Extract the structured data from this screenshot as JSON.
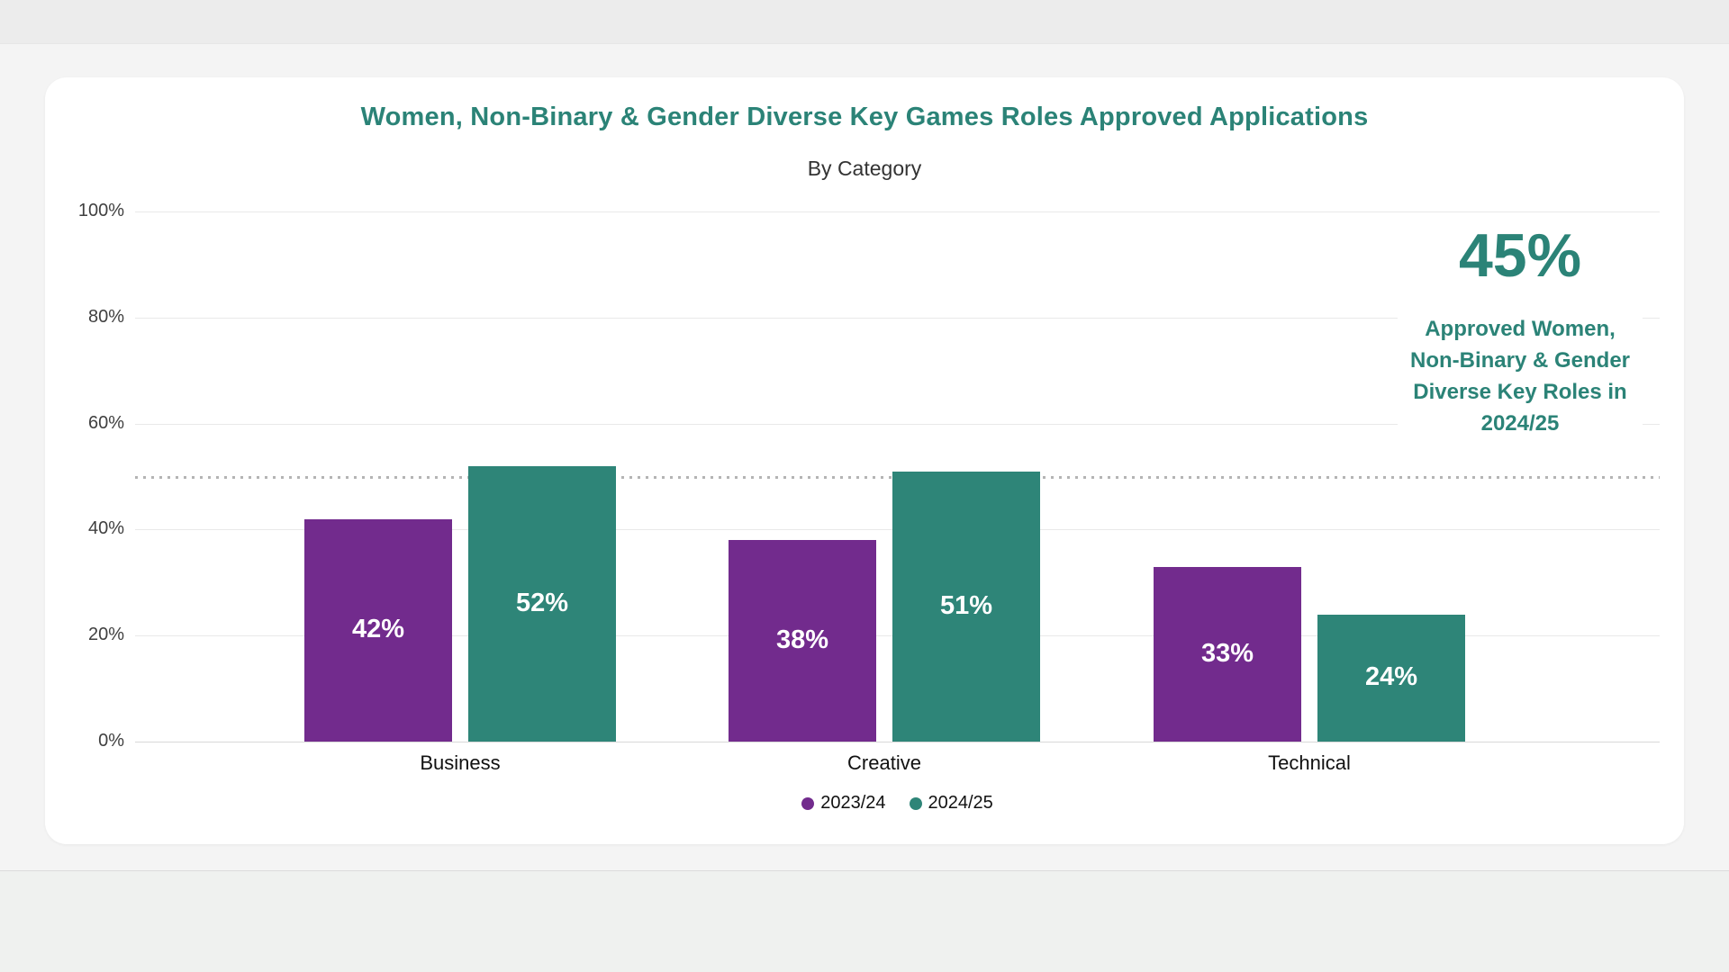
{
  "chart": {
    "title": "Women, Non-Binary & Gender Diverse Key Games Roles Approved Applications",
    "subtitle": "By Category",
    "title_color": "#2B8377"
  },
  "chart_data": {
    "type": "bar",
    "categories": [
      "Business",
      "Creative",
      "Technical"
    ],
    "series": [
      {
        "name": "2023/24",
        "color": "#722B8D",
        "values": [
          42,
          38,
          33
        ],
        "labels": [
          "42%",
          "38%",
          "33%"
        ]
      },
      {
        "name": "2024/25",
        "color": "#2E8578",
        "values": [
          52,
          51,
          24
        ],
        "labels": [
          "52%",
          "51%",
          "24%"
        ]
      }
    ],
    "ylabel": "",
    "xlabel": "",
    "ylim": [
      0,
      100
    ],
    "ytick_labels": [
      "0%",
      "20%",
      "40%",
      "60%",
      "80%",
      "100%"
    ],
    "ytick_values": [
      0,
      20,
      40,
      60,
      80,
      100
    ],
    "grid": "horizontal",
    "reference_line": {
      "value": 50,
      "style": "dotted",
      "color": "#B4B4B4"
    },
    "legend_position": "bottom",
    "bar_value_labels": "centered-white-bold"
  },
  "annotation": {
    "headline": "45%",
    "description": "Approved Women, Non-Binary & Gender Diverse Key Roles in 2024/25",
    "color": "#2B8377"
  }
}
